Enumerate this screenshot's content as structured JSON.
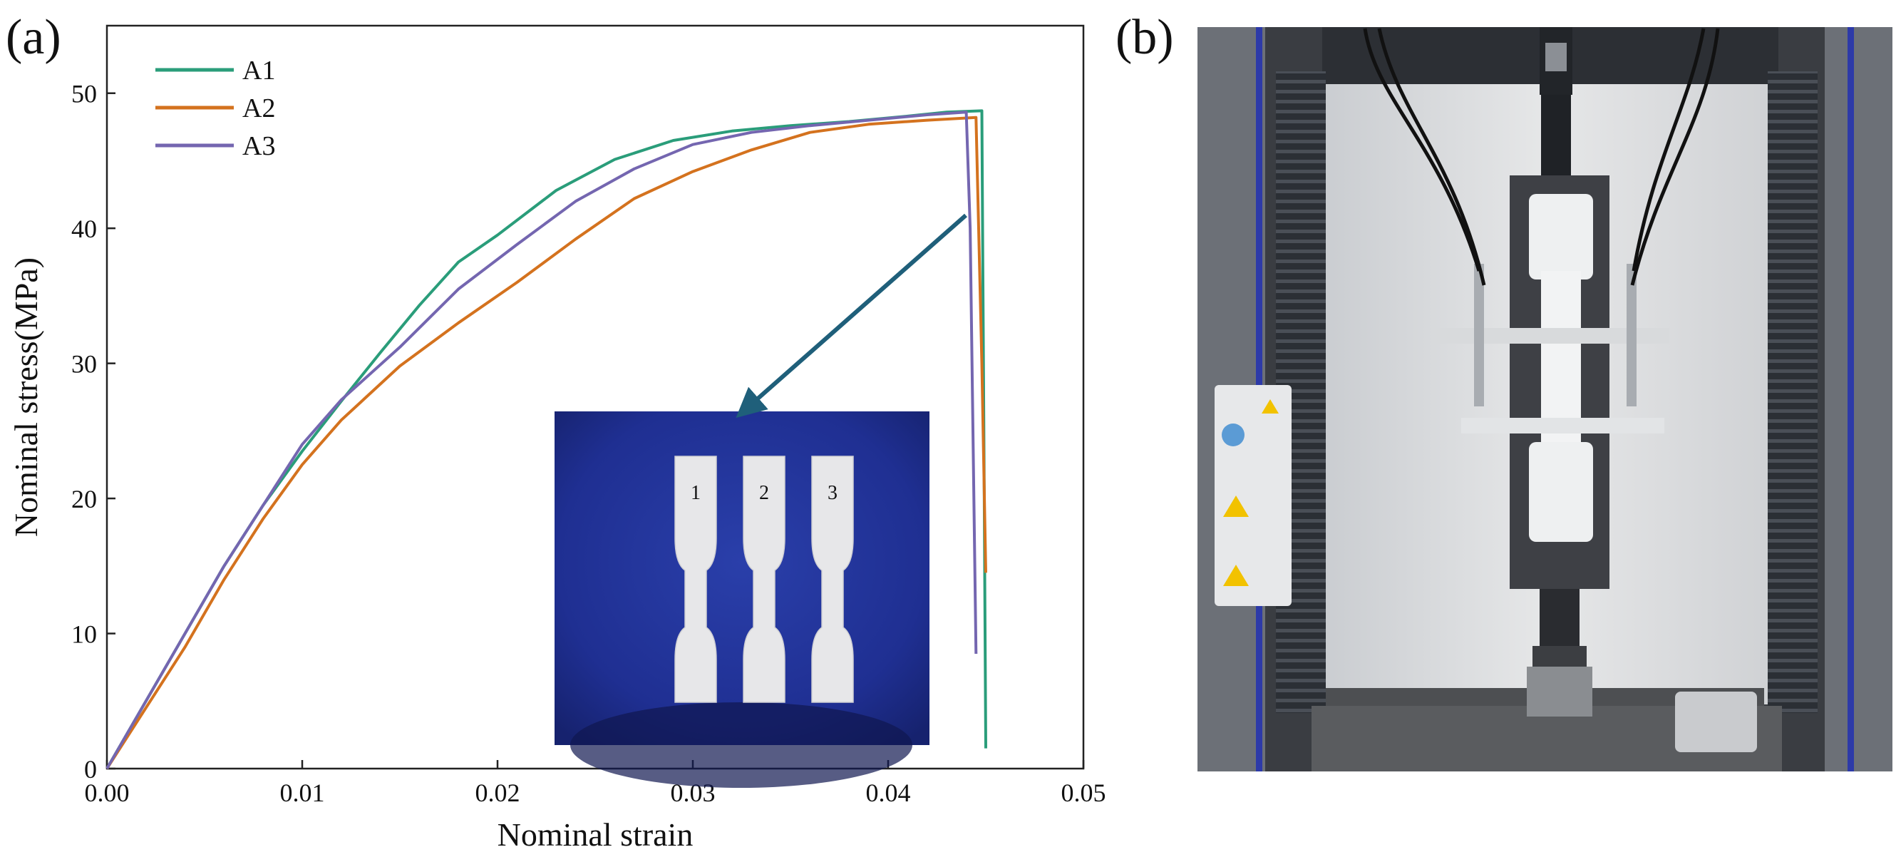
{
  "panels": {
    "a_label": "(a)",
    "b_label": "(b)"
  },
  "photo_labels": [
    "1",
    "2",
    "3"
  ],
  "chart_data": {
    "type": "line",
    "xlabel": "Nominal strain",
    "ylabel": "Nominal stress(MPa)",
    "xlim": [
      0,
      0.05
    ],
    "ylim": [
      0,
      55
    ],
    "x_ticks": [
      0.0,
      0.01,
      0.02,
      0.03,
      0.04,
      0.05
    ],
    "x_tick_labels": [
      "0.00",
      "0.01",
      "0.02",
      "0.03",
      "0.04",
      "0.05"
    ],
    "y_ticks": [
      0,
      10,
      20,
      30,
      40,
      50
    ],
    "y_tick_labels": [
      "0",
      "10",
      "20",
      "30",
      "40",
      "50"
    ],
    "grid": false,
    "legend_position": "top-left",
    "series": [
      {
        "name": "A1",
        "color": "#2a9d7a",
        "x": [
          0,
          0.002,
          0.004,
          0.006,
          0.008,
          0.01,
          0.012,
          0.014,
          0.016,
          0.018,
          0.02,
          0.023,
          0.026,
          0.029,
          0.032,
          0.035,
          0.038,
          0.041,
          0.043,
          0.0448,
          0.0449,
          0.045
        ],
        "y": [
          0,
          5,
          10,
          15,
          19.5,
          23.5,
          27.2,
          30.8,
          34.3,
          37.5,
          39.5,
          42.8,
          45.1,
          46.5,
          47.2,
          47.6,
          47.9,
          48.3,
          48.6,
          48.7,
          25,
          1.5
        ]
      },
      {
        "name": "A2",
        "color": "#d4721e",
        "x": [
          0,
          0.002,
          0.004,
          0.006,
          0.008,
          0.01,
          0.012,
          0.015,
          0.018,
          0.021,
          0.024,
          0.027,
          0.03,
          0.033,
          0.036,
          0.039,
          0.042,
          0.0445,
          0.0448,
          0.045
        ],
        "y": [
          0,
          4.5,
          9,
          14,
          18.5,
          22.5,
          25.8,
          29.8,
          33,
          36,
          39.2,
          42.2,
          44.2,
          45.8,
          47.1,
          47.7,
          48,
          48.2,
          30,
          14.5
        ]
      },
      {
        "name": "A3",
        "color": "#7466b0",
        "x": [
          0,
          0.002,
          0.004,
          0.006,
          0.008,
          0.01,
          0.012,
          0.015,
          0.018,
          0.021,
          0.024,
          0.027,
          0.03,
          0.033,
          0.036,
          0.039,
          0.042,
          0.044,
          0.0442,
          0.0445
        ],
        "y": [
          0,
          5,
          10,
          15,
          19.5,
          24,
          27.3,
          31.2,
          35.5,
          38.8,
          42,
          44.4,
          46.2,
          47.1,
          47.6,
          48,
          48.4,
          48.6,
          40,
          8.5
        ]
      }
    ]
  }
}
